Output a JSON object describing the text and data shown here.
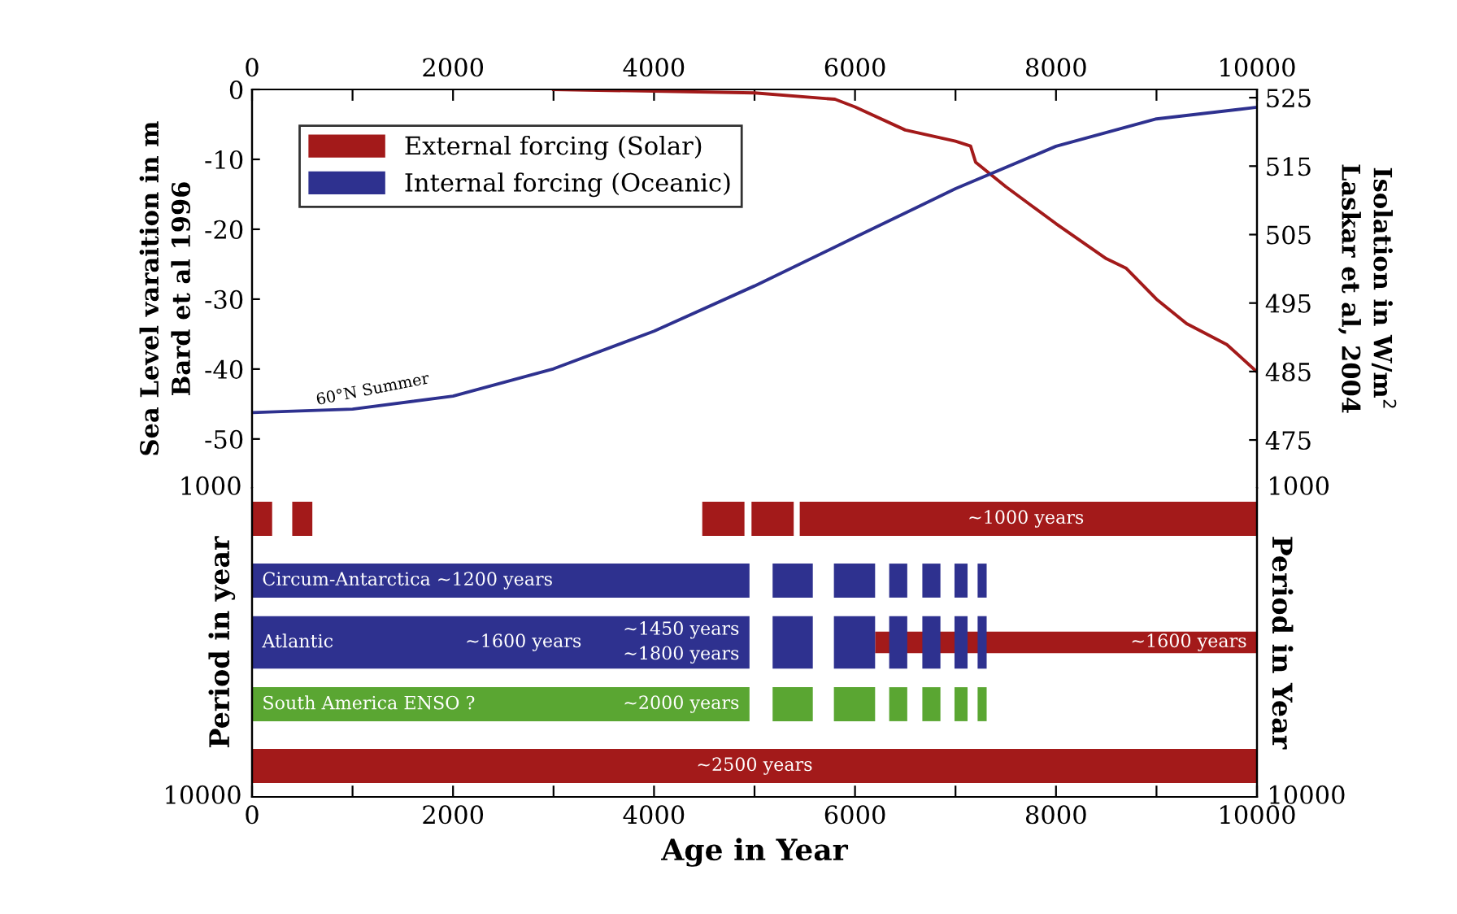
{
  "chart_data": [
    {
      "type": "line",
      "xlim": [
        0,
        10000
      ],
      "xticks": [
        0,
        {
          "value": 1000,
          "label": null
        },
        2000,
        {
          "value": 3000,
          "label": null
        },
        4000,
        {
          "value": 5000,
          "label": null
        },
        6000,
        {
          "value": 7000,
          "label": null
        },
        8000,
        {
          "value": 9000,
          "label": null
        },
        10000
      ],
      "ylim": [
        -57,
        0
      ],
      "yticks": [
        0,
        -10,
        -20,
        -30,
        -40,
        -50
      ],
      "y2lim": [
        468,
        526.2
      ],
      "y2ticks": [
        525,
        515,
        505,
        495,
        485,
        475
      ],
      "ylabel": "Sea Level varaition in m\nBard et al 1996",
      "y2label": "Isolation in W/m$^{2}$\nLaskar et al, 2004",
      "legend": "top left",
      "grid": false,
      "tick_labels": "xy",
      "annotations": [
        "60°N Summer"
      ],
      "series": [
        {
          "name": "External forcing (Solar)",
          "color": "#a31a1a",
          "x": [
            3000,
            5000,
            5800,
            6000,
            6500,
            7000,
            7150,
            7200,
            7500,
            8000,
            8500,
            8700,
            9000,
            9300,
            9700,
            10000
          ],
          "values": [
            0,
            -0.5,
            -1.4,
            -2.5,
            -5.8,
            -7.4,
            -8.1,
            -10.4,
            -13.9,
            -19.2,
            -24.2,
            -25.6,
            -30,
            -33.5,
            -36.5,
            -40.4
          ]
        },
        {
          "name": "Internal forcing (Oceanic)",
          "color": "#2e318f",
          "axis": "y2",
          "x": [
            0,
            1000,
            2000,
            3000,
            4000,
            5000,
            6000,
            7000,
            8000,
            9000,
            10000
          ],
          "values": [
            479.0,
            479.5,
            481.4,
            485.4,
            490.9,
            497.5,
            504.6,
            511.7,
            517.9,
            521.9,
            523.6
          ]
        }
      ]
    },
    {
      "type": "bar",
      "orientation": "horizontal",
      "categories": [
        null,
        null,
        null,
        null,
        null
      ],
      "xlim": [
        0,
        10000
      ],
      "xticks": [
        0,
        {
          "value": 1000,
          "label": null
        },
        2000,
        {
          "value": 3000,
          "label": null
        },
        4000,
        {
          "value": 5000,
          "label": null
        },
        6000,
        {
          "value": 7000,
          "label": null
        },
        8000,
        {
          "value": 9000,
          "label": null
        },
        10000
      ],
      "xlabel": "Age in Year",
      "ylabel": "Period in year",
      "y2label": "Period in Year",
      "annotations": [
        "1000",
        "10000",
        "1000",
        "10000",
        "~1000 years",
        "Circum-Antarctica ~1200 years",
        "Atlantic",
        "~1600 years",
        "~1450 years",
        "~1800 years",
        "~1600 years",
        "South America ENSO ?",
        "~2000 years",
        "~2500 years"
      ],
      "series": [
        {
          "base": [
            null,
            null,
            6200,
            null,
            null
          ],
          "values": [
            null,
            null,
            3800,
            null,
            null
          ],
          "colors": [
            null,
            null,
            "#a31a1a",
            null,
            null
          ]
        },
        {
          "base": [
            0,
            0,
            0,
            0,
            0
          ],
          "values": [
            200,
            4950,
            4950,
            4950,
            10000
          ],
          "colors": [
            "#a31a1a",
            "#2e318f",
            "#2e318f",
            "#5aa632",
            "#a31a1a"
          ]
        },
        {
          "base": [
            400,
            5180,
            5180,
            5180,
            null
          ],
          "values": [
            200,
            400,
            400,
            400,
            null
          ],
          "colors": [
            "#a31a1a",
            "#2e318f",
            "#2e318f",
            "#5aa632",
            null
          ]
        },
        {
          "base": [
            4480,
            5790,
            5790,
            5790,
            null
          ],
          "values": [
            420,
            410,
            410,
            410,
            null
          ],
          "colors": [
            "#a31a1a",
            "#2e318f",
            "#2e318f",
            "#5aa632",
            null
          ]
        },
        {
          "base": [
            4970,
            6340,
            6340,
            6340,
            null
          ],
          "values": [
            420,
            180,
            180,
            180,
            null
          ],
          "colors": [
            "#a31a1a",
            "#2e318f",
            "#2e318f",
            "#5aa632",
            null
          ]
        },
        {
          "base": [
            5450,
            6670,
            6670,
            6670,
            null
          ],
          "values": [
            4550,
            180,
            180,
            180,
            null
          ],
          "colors": [
            "#a31a1a",
            "#2e318f",
            "#2e318f",
            "#5aa632",
            null
          ]
        },
        {
          "base": [
            null,
            6990,
            6990,
            6990,
            null
          ],
          "values": [
            null,
            130,
            130,
            130,
            null
          ],
          "colors": [
            null,
            "#2e318f",
            "#2e318f",
            "#5aa632",
            null
          ]
        },
        {
          "base": [
            null,
            7220,
            7220,
            7220,
            null
          ],
          "values": [
            null,
            90,
            90,
            90,
            null
          ],
          "colors": [
            null,
            "#2e318f",
            "#2e318f",
            "#5aa632",
            null
          ]
        }
      ]
    }
  ]
}
